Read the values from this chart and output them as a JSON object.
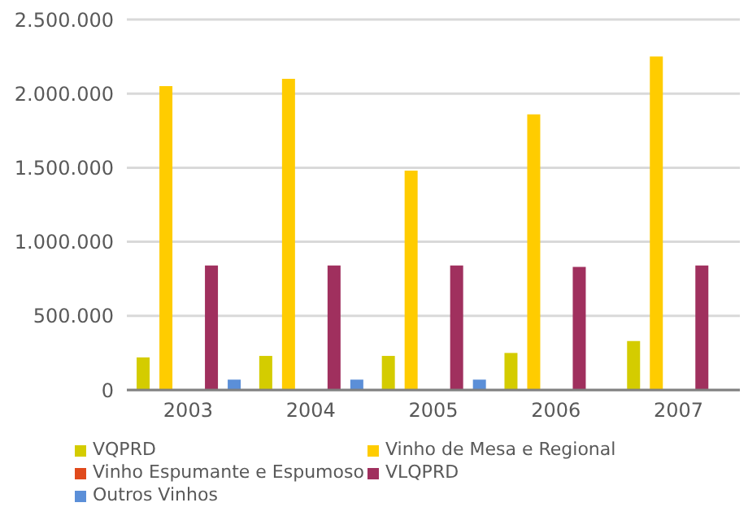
{
  "chart_data": {
    "type": "bar",
    "categories": [
      "2003",
      "2004",
      "2005",
      "2006",
      "2007"
    ],
    "series": [
      {
        "name": "VQPRD",
        "color": "#d4cc00",
        "values": [
          220000,
          230000,
          230000,
          250000,
          330000
        ]
      },
      {
        "name": "Vinho de Mesa e Regional",
        "color": "#ffcc00",
        "values": [
          2050000,
          2100000,
          1480000,
          1860000,
          2250000
        ]
      },
      {
        "name": "Vinho Espumante  e Espumoso",
        "color": "#e04a1c",
        "values": [
          0,
          0,
          0,
          0,
          0
        ]
      },
      {
        "name": "VLQPRD",
        "color": "#a0305e",
        "values": [
          840000,
          840000,
          840000,
          830000,
          840000
        ]
      },
      {
        "name": "Outros Vinhos",
        "color": "#5b8fd8",
        "values": [
          70000,
          70000,
          70000,
          0,
          0
        ]
      }
    ],
    "ylim": [
      0,
      2500000
    ],
    "yticks": [
      {
        "value": 0,
        "label": "0"
      },
      {
        "value": 500000,
        "label": "500.000"
      },
      {
        "value": 1000000,
        "label": "1.000.000"
      },
      {
        "value": 1500000,
        "label": "1.500.000"
      },
      {
        "value": 2000000,
        "label": "2.000.000"
      },
      {
        "value": 2500000,
        "label": "2.500.000"
      }
    ],
    "grid": "y",
    "legend": "bottom"
  }
}
